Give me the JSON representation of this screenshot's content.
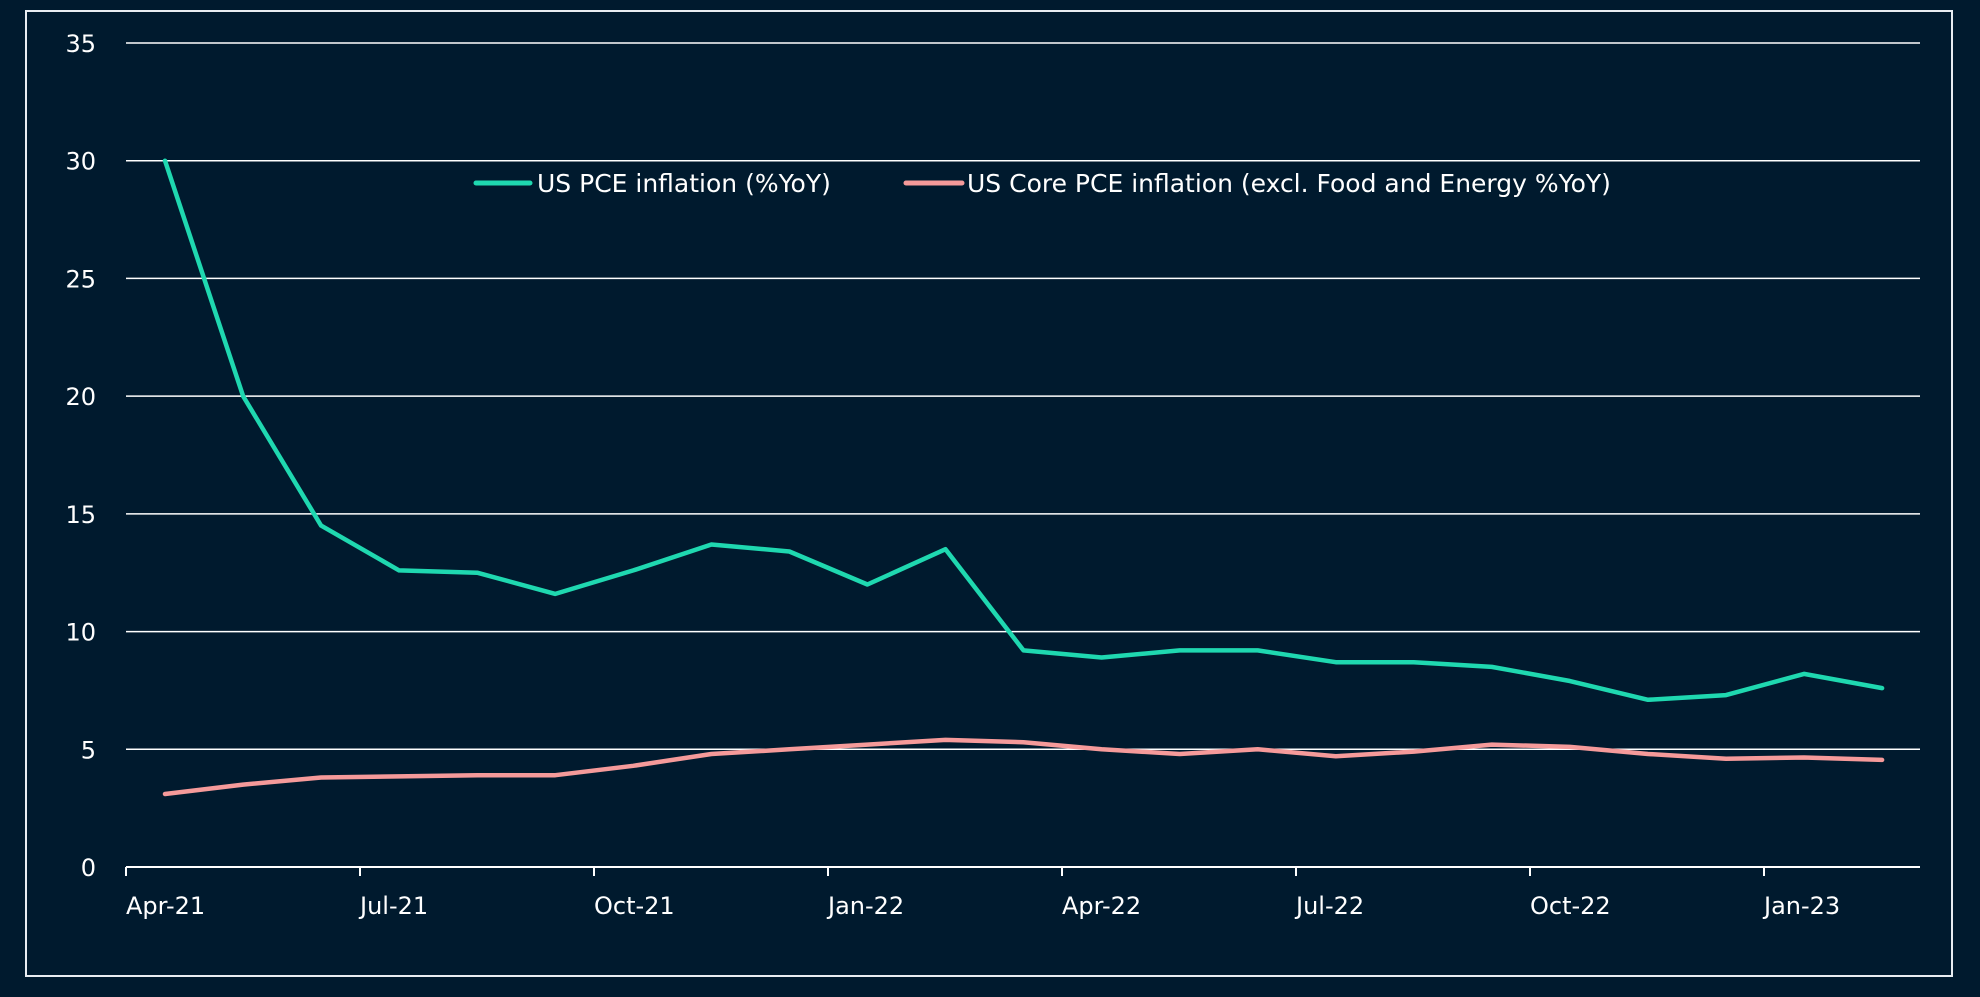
{
  "chart_data": {
    "type": "line",
    "title": "",
    "xlabel": "",
    "ylabel": "",
    "ylim": [
      0,
      35
    ],
    "yticks": [
      0,
      5,
      10,
      15,
      20,
      25,
      30,
      35
    ],
    "x": [
      "Apr-21",
      "May-21",
      "Jun-21",
      "Jul-21",
      "Aug-21",
      "Sep-21",
      "Oct-21",
      "Nov-21",
      "Dec-21",
      "Jan-22",
      "Feb-22",
      "Mar-22",
      "Apr-22",
      "May-22",
      "Jun-22",
      "Jul-22",
      "Aug-22",
      "Sep-22",
      "Oct-22",
      "Nov-22",
      "Dec-22",
      "Jan-23",
      "Feb-23"
    ],
    "xtick_labels": [
      "Apr-21",
      "Jul-21",
      "Oct-21",
      "Jan-22",
      "Apr-22",
      "Jul-22",
      "Oct-22",
      "Jan-23"
    ],
    "grid": true,
    "legend_position": "top-center",
    "series": [
      {
        "name": "US PCE inflation (%YoY)",
        "color": "#1fd8b0",
        "values": [
          30.0,
          20.0,
          14.5,
          12.6,
          12.5,
          11.6,
          12.6,
          13.7,
          13.4,
          12.0,
          13.5,
          9.2,
          8.9,
          9.2,
          9.2,
          8.7,
          8.7,
          8.5,
          7.9,
          7.1,
          7.3,
          8.2,
          7.6
        ]
      },
      {
        "name": "US Core PCE inflation (excl. Food and Energy %YoY)",
        "color": "#f59a9a",
        "values": [
          3.1,
          3.5,
          3.8,
          3.85,
          3.9,
          3.9,
          4.3,
          4.8,
          5.0,
          5.2,
          5.4,
          5.3,
          5.0,
          4.8,
          5.0,
          4.7,
          4.9,
          5.2,
          5.1,
          4.8,
          4.6,
          4.65,
          4.55
        ]
      }
    ]
  },
  "colors": {
    "background": "#001a2e",
    "frame": "#e8edf1",
    "grid": "#ffffff",
    "text": "#ffffff"
  }
}
